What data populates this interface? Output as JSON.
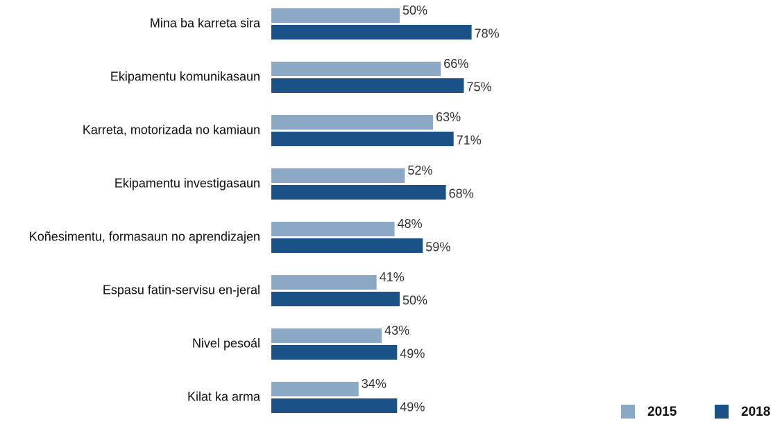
{
  "chart_data": {
    "type": "bar",
    "orientation": "horizontal",
    "categories": [
      "Mina ba karreta sira",
      "Ekipamentu komunikasaun",
      "Karreta, motorizada no kamiaun",
      "Ekipamentu investigasaun",
      "Koñesimentu, formasaun no aprendizajen",
      "Espasu fatin-servisu en-jeral",
      "Nivel pesoál",
      "Kilat ka arma"
    ],
    "series": [
      {
        "name": "2015",
        "color": "#8ba9c4",
        "values": [
          50,
          66,
          63,
          52,
          48,
          41,
          43,
          34
        ],
        "value_labels": [
          "50%",
          "66%",
          "63%",
          "52%",
          "48%",
          "41%",
          "43%",
          "34%"
        ]
      },
      {
        "name": "2018",
        "color": "#1a5288",
        "values": [
          78,
          75,
          71,
          68,
          59,
          50,
          49,
          49
        ],
        "value_labels": [
          "78%",
          "75%",
          "71%",
          "68%",
          "59%",
          "50%",
          "49%",
          "49%"
        ]
      }
    ],
    "xlim": [
      0,
      100
    ],
    "legend": "bottom-right"
  }
}
